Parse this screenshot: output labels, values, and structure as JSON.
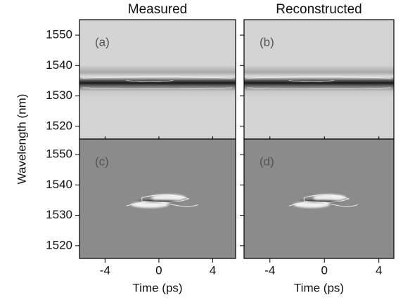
{
  "chart_data": [
    {
      "type": "heatmap",
      "title": "Measured",
      "panel_label": "(a)",
      "xlim": [
        -5.9,
        5.7
      ],
      "xticks": [
        -4,
        0,
        4
      ],
      "ylim": [
        1515.8,
        1555.1
      ],
      "yticks": [
        1520,
        1530,
        1540,
        1550
      ],
      "ylabel": "Wavelength (nm)",
      "style": "trace"
    },
    {
      "type": "heatmap",
      "title": "Reconstructed",
      "panel_label": "(b)",
      "xlim": [
        -5.9,
        5.1
      ],
      "xticks": [
        -4,
        0,
        4
      ],
      "ylim": [
        1515.8,
        1555.1
      ],
      "yticks": [
        1520,
        1530,
        1540,
        1550
      ],
      "style": "trace"
    },
    {
      "type": "heatmap",
      "panel_label": "(c)",
      "xlim": [
        -5.9,
        5.7
      ],
      "xticks": [
        -4,
        0,
        4
      ],
      "ylim": [
        1515.8,
        1555.1
      ],
      "yticks": [
        1520,
        1530,
        1540,
        1550
      ],
      "xlabel": "Time (ps)",
      "style": "difference"
    },
    {
      "type": "heatmap",
      "panel_label": "(d)",
      "xlim": [
        -5.9,
        5.1
      ],
      "xticks": [
        -4,
        0,
        4
      ],
      "ylim": [
        1515.8,
        1555.1
      ],
      "yticks": [
        1520,
        1530,
        1540,
        1550
      ],
      "xlabel": "Time (ps)",
      "style": "difference"
    }
  ]
}
